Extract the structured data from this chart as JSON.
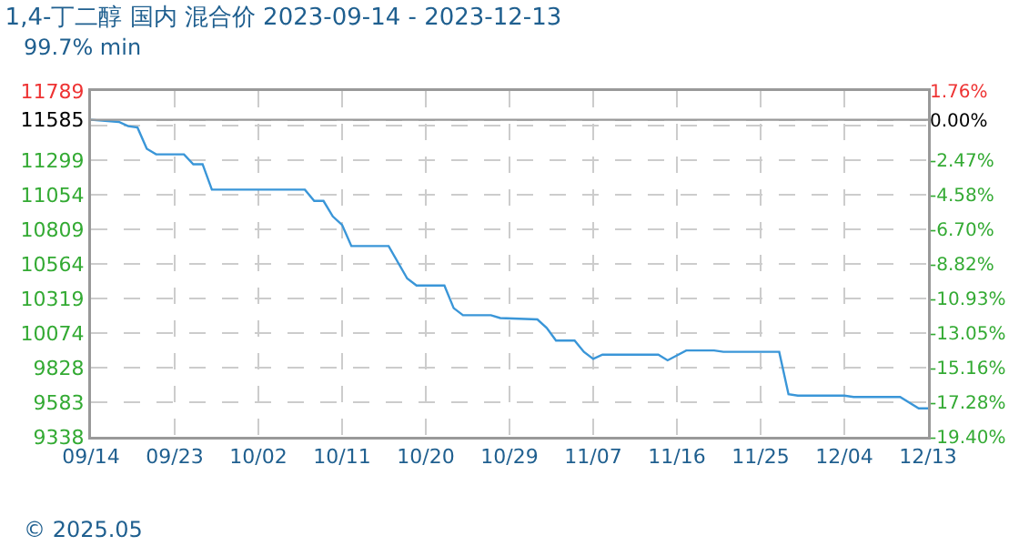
{
  "chart_data": {
    "type": "line",
    "title": "1,4-丁二醇 国内 混合价 2023-09-14 - 2023-12-13",
    "subtitle": "99.7% min",
    "x": [
      "2023-09-14",
      "2023-09-17",
      "2023-09-18",
      "2023-09-19",
      "2023-09-20",
      "2023-09-21",
      "2023-09-24",
      "2023-09-25",
      "2023-09-26",
      "2023-09-27",
      "2023-10-07",
      "2023-10-08",
      "2023-10-09",
      "2023-10-10",
      "2023-10-11",
      "2023-10-12",
      "2023-10-16",
      "2023-10-18",
      "2023-10-19",
      "2023-10-22",
      "2023-10-23",
      "2023-10-24",
      "2023-10-27",
      "2023-10-28",
      "2023-11-01",
      "2023-11-02",
      "2023-11-03",
      "2023-11-05",
      "2023-11-06",
      "2023-11-07",
      "2023-11-08",
      "2023-11-14",
      "2023-11-15",
      "2023-11-17",
      "2023-11-20",
      "2023-11-21",
      "2023-11-27",
      "2023-11-28",
      "2023-11-29",
      "2023-12-04",
      "2023-12-05",
      "2023-12-10",
      "2023-12-12",
      "2023-12-13"
    ],
    "series": [
      {
        "color": "#3a96d8",
        "values": [
          11585,
          11570,
          11540,
          11530,
          11380,
          11340,
          11340,
          11270,
          11270,
          11090,
          11090,
          11010,
          11010,
          10900,
          10840,
          10690,
          10690,
          10460,
          10410,
          10410,
          10250,
          10200,
          10200,
          10180,
          10170,
          10110,
          10020,
          10020,
          9940,
          9890,
          9920,
          9920,
          9880,
          9950,
          9950,
          9940,
          9940,
          9640,
          9630,
          9630,
          9620,
          9620,
          9540,
          9540
        ]
      }
    ],
    "xlim": [
      "2023-09-14",
      "2023-12-13"
    ],
    "xticks": [
      {
        "value": "2023-09-14",
        "label": "09/14"
      },
      {
        "value": "2023-09-23",
        "label": "09/23"
      },
      {
        "value": "2023-10-02",
        "label": "10/02"
      },
      {
        "value": "2023-10-11",
        "label": "10/11"
      },
      {
        "value": "2023-10-20",
        "label": "10/20"
      },
      {
        "value": "2023-10-29",
        "label": "10/29"
      },
      {
        "value": "2023-11-07",
        "label": "11/07"
      },
      {
        "value": "2023-11-16",
        "label": "11/16"
      },
      {
        "value": "2023-11-25",
        "label": "11/25"
      },
      {
        "value": "2023-12-04",
        "label": "12/04"
      },
      {
        "value": "2023-12-13",
        "label": "12/13"
      }
    ],
    "ylim": [
      9338,
      11789
    ],
    "yticks": [
      11789,
      11585,
      {
        "value": 11544,
        "label": null
      },
      11299,
      11054,
      10809,
      10564,
      10319,
      10074,
      9828,
      9583,
      9338
    ],
    "y2lim": [
      -19.4,
      1.76
    ],
    "y2ticks": [
      {
        "value": 1.76,
        "label": "1.76%"
      },
      {
        "value": 0,
        "label": "0.00%"
      },
      {
        "value": -2.47,
        "label": "-2.47%"
      },
      {
        "value": -4.58,
        "label": "-4.58%"
      },
      {
        "value": -6.7,
        "label": "-6.70%"
      },
      {
        "value": -8.82,
        "label": "-8.82%"
      },
      {
        "value": -10.93,
        "label": "-10.93%"
      },
      {
        "value": -13.05,
        "label": "-13.05%"
      },
      {
        "value": -15.16,
        "label": "-15.16%"
      },
      {
        "value": -17.28,
        "label": "-17.28%"
      },
      {
        "value": -19.4,
        "label": "-19.40%"
      }
    ],
    "ref_lines": [
      {
        "axis": "y",
        "value": 11585,
        "color": "#999999",
        "line_style": "solid"
      }
    ],
    "grid": true,
    "marker": "none",
    "line_style": "solid",
    "annotations": [
      "© 2025.05"
    ]
  }
}
